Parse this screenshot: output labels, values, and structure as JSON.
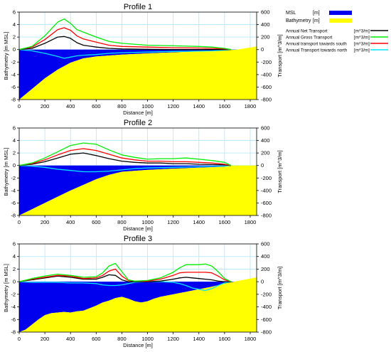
{
  "chart_data": [
    {
      "type": "area",
      "title": "Profile 1",
      "xlabel": "Distance [m]",
      "ylabel": "Bathymetry [m MSL]",
      "y2label": "Transport [m^3/m]",
      "xlim": [
        0,
        1850
      ],
      "ylim": [
        -8,
        6
      ],
      "y2lim": [
        -800,
        600
      ],
      "xticks": [
        0,
        200,
        400,
        600,
        800,
        1000,
        1200,
        1400,
        1600,
        1800
      ],
      "yticks": [
        -8,
        -6,
        -4,
        -2,
        0,
        2,
        4,
        6
      ],
      "y2ticks": [
        -800,
        -600,
        -400,
        -200,
        0,
        200,
        400,
        600
      ],
      "grid": true,
      "bathymetry": {
        "x": [
          0,
          100,
          200,
          300,
          400,
          500,
          600,
          800,
          1000,
          1200,
          1400,
          1600,
          1700,
          1850
        ],
        "y": [
          -8,
          -6.3,
          -4.6,
          -3.2,
          -2.1,
          -1.4,
          -1.1,
          -0.8,
          -0.6,
          -0.45,
          -0.3,
          -0.15,
          0,
          0.5
        ]
      },
      "transport": {
        "x": [
          0,
          100,
          200,
          300,
          350,
          400,
          450,
          500,
          600,
          700,
          800,
          1000,
          1200,
          1400,
          1500,
          1600,
          1650
        ],
        "net": [
          0,
          20,
          100,
          200,
          210,
          180,
          110,
          70,
          40,
          20,
          10,
          5,
          0,
          0,
          0,
          0,
          0
        ],
        "gross": [
          0,
          50,
          220,
          440,
          490,
          420,
          320,
          280,
          200,
          130,
          100,
          70,
          60,
          50,
          40,
          20,
          0
        ],
        "south": [
          0,
          40,
          160,
          320,
          350,
          310,
          220,
          170,
          120,
          70,
          50,
          40,
          30,
          25,
          20,
          10,
          0
        ],
        "north": [
          0,
          -20,
          -60,
          -110,
          -140,
          -120,
          -100,
          -90,
          -80,
          -60,
          -50,
          -40,
          -30,
          -25,
          -20,
          -10,
          0
        ]
      }
    },
    {
      "type": "area",
      "title": "Profile 2",
      "xlabel": "Distance [m]",
      "ylabel": "Bathymetry [m MSL]",
      "y2label": "Transport [m^3/m]",
      "xlim": [
        0,
        1850
      ],
      "ylim": [
        -8,
        6
      ],
      "y2lim": [
        -800,
        600
      ],
      "xticks": [
        0,
        200,
        400,
        600,
        800,
        1000,
        1200,
        1400,
        1600,
        1800
      ],
      "yticks": [
        -8,
        -6,
        -4,
        -2,
        0,
        2,
        4,
        6
      ],
      "y2ticks": [
        -800,
        -600,
        -400,
        -200,
        0,
        200,
        400,
        600
      ],
      "grid": true,
      "bathymetry": {
        "x": [
          0,
          100,
          200,
          300,
          400,
          500,
          600,
          700,
          800,
          1000,
          1200,
          1400,
          1600,
          1650,
          1850
        ],
        "y": [
          -8,
          -7,
          -6,
          -5,
          -4,
          -3.1,
          -2.2,
          -1.5,
          -1,
          -0.7,
          -0.5,
          -0.35,
          -0.2,
          0,
          0
        ]
      },
      "transport": {
        "x": [
          0,
          100,
          200,
          300,
          400,
          500,
          600,
          700,
          800,
          900,
          1000,
          1100,
          1200,
          1300,
          1400,
          1500,
          1600,
          1650
        ],
        "net": [
          0,
          20,
          60,
          120,
          180,
          200,
          160,
          110,
          70,
          50,
          40,
          40,
          30,
          30,
          20,
          15,
          10,
          0
        ],
        "gross": [
          0,
          40,
          120,
          220,
          320,
          360,
          340,
          250,
          170,
          130,
          100,
          110,
          110,
          120,
          100,
          80,
          50,
          0
        ],
        "south": [
          0,
          30,
          90,
          170,
          240,
          270,
          240,
          180,
          120,
          90,
          70,
          70,
          60,
          60,
          50,
          40,
          20,
          0
        ],
        "north": [
          0,
          -10,
          -30,
          -60,
          -80,
          -100,
          -100,
          -90,
          -70,
          -50,
          -40,
          -35,
          -30,
          -25,
          -20,
          -15,
          -10,
          0
        ]
      }
    },
    {
      "type": "area",
      "title": "Profile 3",
      "xlabel": "Distance [m]",
      "ylabel": "Bathymetry [m MSL]",
      "y2label": "Transport [m^3/m]",
      "xlim": [
        0,
        1850
      ],
      "ylim": [
        -8,
        6
      ],
      "y2lim": [
        -800,
        600
      ],
      "xticks": [
        0,
        200,
        400,
        600,
        800,
        1000,
        1200,
        1400,
        1600,
        1800
      ],
      "yticks": [
        -8,
        -6,
        -4,
        -2,
        0,
        2,
        4,
        6
      ],
      "y2ticks": [
        -800,
        -600,
        -400,
        -200,
        0,
        200,
        400,
        600
      ],
      "grid": true,
      "bathymetry": {
        "x": [
          0,
          50,
          100,
          150,
          200,
          250,
          300,
          350,
          400,
          450,
          500,
          550,
          600,
          650,
          700,
          750,
          800,
          850,
          900,
          950,
          1000,
          1050,
          1100,
          1200,
          1300,
          1400,
          1500,
          1600,
          1700,
          1850
        ],
        "y": [
          -8,
          -7.6,
          -6.8,
          -6,
          -5.3,
          -5,
          -4.9,
          -4.8,
          -4.9,
          -4.7,
          -4.6,
          -4.2,
          -3.8,
          -3.3,
          -3,
          -2.6,
          -2.4,
          -2.7,
          -3.1,
          -3.3,
          -3.1,
          -2.7,
          -2.4,
          -2,
          -1.6,
          -1.2,
          -0.8,
          -0.3,
          0.1,
          0.7
        ]
      },
      "transport": {
        "x": [
          0,
          100,
          200,
          300,
          400,
          500,
          600,
          650,
          700,
          750,
          800,
          850,
          900,
          1000,
          1100,
          1200,
          1250,
          1300,
          1350,
          1400,
          1450,
          1500,
          1550,
          1600,
          1650
        ],
        "net": [
          0,
          30,
          60,
          90,
          70,
          40,
          40,
          70,
          110,
          100,
          30,
          0,
          0,
          0,
          10,
          40,
          60,
          70,
          60,
          50,
          40,
          30,
          10,
          0,
          0
        ],
        "gross": [
          0,
          50,
          90,
          120,
          100,
          70,
          80,
          140,
          250,
          290,
          160,
          30,
          10,
          20,
          60,
          150,
          220,
          270,
          270,
          270,
          280,
          250,
          160,
          50,
          0
        ],
        "south": [
          0,
          40,
          70,
          100,
          90,
          50,
          60,
          100,
          170,
          200,
          90,
          20,
          10,
          10,
          40,
          100,
          140,
          150,
          150,
          150,
          150,
          140,
          90,
          30,
          0
        ],
        "north": [
          0,
          -10,
          -10,
          -10,
          -20,
          -20,
          -30,
          -50,
          -60,
          -60,
          -50,
          -30,
          -10,
          0,
          0,
          -10,
          -30,
          -60,
          -100,
          -120,
          -140,
          -110,
          -60,
          -20,
          0
        ]
      }
    }
  ],
  "legend": {
    "placement": "right",
    "bathy_items": [
      {
        "label": "MSL",
        "unit": "[m]",
        "color": "#0000ee"
      },
      {
        "label": "Bathymetry",
        "unit": "[m]",
        "color": "#ffff00"
      }
    ],
    "transport_items": [
      {
        "label": "Annual Net Transport",
        "unit": "[m^3/m]",
        "color": "#000000"
      },
      {
        "label": "Annual Gross Transport",
        "unit": "[m^3/m]",
        "color": "#00ee00"
      },
      {
        "label": "Annual transport towards south",
        "unit": "[m^3/m]",
        "color": "#ff0000"
      },
      {
        "label": "Annual Transport towards north",
        "unit": "[m^3/m]",
        "color": "#00e5ff"
      }
    ]
  },
  "colors": {
    "water": "#0000ee",
    "land": "#ffff00",
    "grid": "#aee6f7"
  }
}
